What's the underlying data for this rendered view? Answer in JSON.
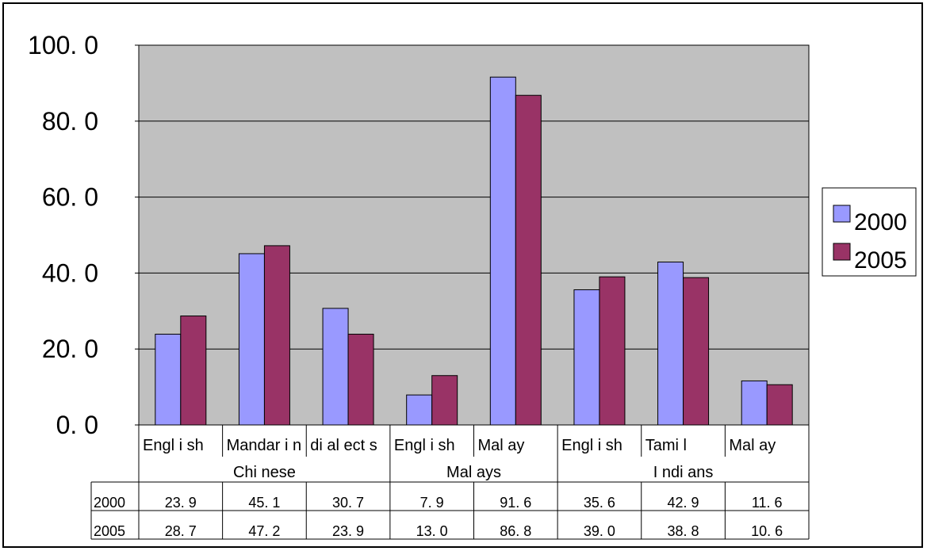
{
  "chart_data": {
    "type": "bar",
    "title": "",
    "xlabel": "",
    "ylabel": "",
    "ylim": [
      0,
      100
    ],
    "yticks": [
      "0. 0",
      "20. 0",
      "40. 0",
      "60. 0",
      "80. 0",
      "100. 0"
    ],
    "categories": [
      "Engl i sh",
      "Mandar i n",
      "di al ect s",
      "Engl i sh",
      "Mal ay",
      "Engl i sh",
      "Tami l",
      "Mal ay"
    ],
    "groups": [
      {
        "label": "Chi nese",
        "span": 3
      },
      {
        "label": "Mal ays",
        "span": 2
      },
      {
        "label": "I ndi ans",
        "span": 3
      }
    ],
    "series": [
      {
        "name": "2000",
        "color": "#9999ff",
        "values": [
          23.9,
          45.1,
          30.7,
          7.9,
          91.6,
          35.6,
          42.9,
          11.6
        ],
        "labels": [
          "23. 9",
          "45. 1",
          "30. 7",
          "7. 9",
          "91. 6",
          "35. 6",
          "42. 9",
          "11. 6"
        ]
      },
      {
        "name": "2005",
        "color": "#993366",
        "values": [
          28.7,
          47.2,
          23.9,
          13.0,
          86.8,
          39.0,
          38.8,
          10.6
        ],
        "labels": [
          "28. 7",
          "47. 2",
          "23. 9",
          "13. 0",
          "86. 8",
          "39. 0",
          "38. 8",
          "10. 6"
        ]
      }
    ],
    "plot_background": "#c0c0c0",
    "grid": true,
    "legend": "right",
    "data_table": true
  }
}
